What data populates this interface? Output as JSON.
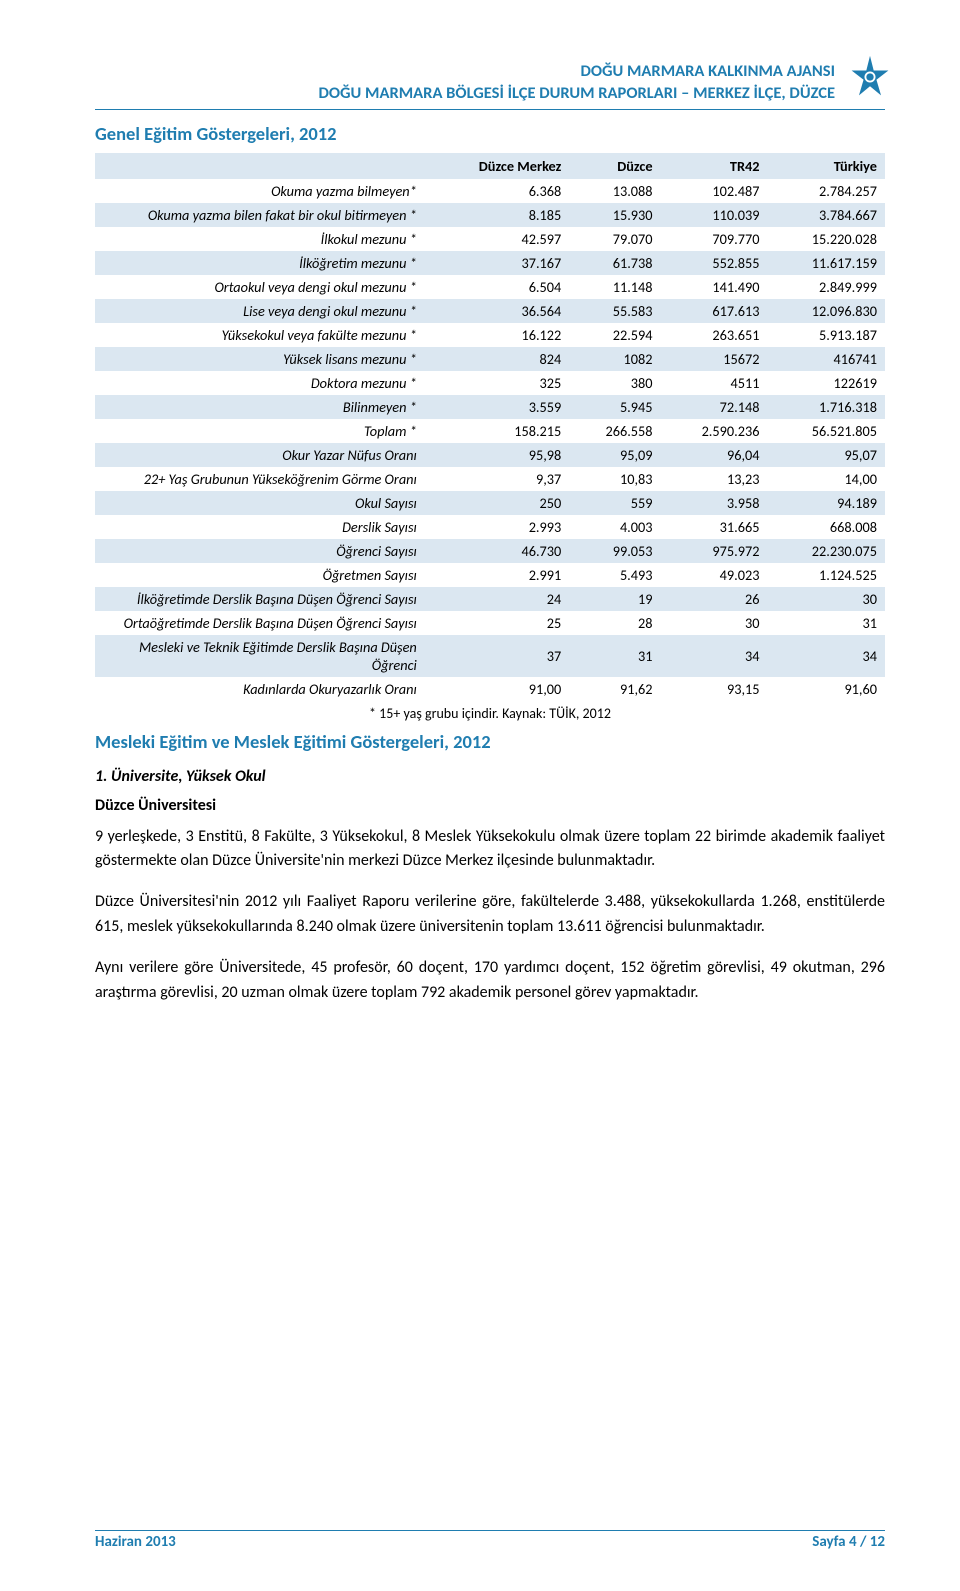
{
  "header": {
    "line1": "DOĞU MARMARA KALKINMA AJANSI",
    "line2": "DOĞU MARMARA BÖLGESİ İLÇE DURUM RAPORLARI – MERKEZ İLÇE, DÜZCE"
  },
  "colors": {
    "accent": "#1f7db0",
    "row_alt": "#dbe7f1",
    "text": "#000000",
    "background": "#ffffff"
  },
  "table1": {
    "title": "Genel Eğitim Göstergeleri, 2012",
    "columns": [
      "",
      "Düzce Merkez",
      "Düzce",
      "TR42",
      "Türkiye"
    ],
    "note": "* 15+ yaş grubu içindir. Kaynak: TÜİK, 2012",
    "rows": [
      {
        "label": "Okuma yazma bilmeyen*",
        "vals": [
          "6.368",
          "13.088",
          "102.487",
          "2.784.257"
        ]
      },
      {
        "label": "Okuma yazma bilen fakat bir okul bitirmeyen *",
        "vals": [
          "8.185",
          "15.930",
          "110.039",
          "3.784.667"
        ]
      },
      {
        "label": "İlkokul mezunu *",
        "vals": [
          "42.597",
          "79.070",
          "709.770",
          "15.220.028"
        ]
      },
      {
        "label": "İlköğretim mezunu *",
        "vals": [
          "37.167",
          "61.738",
          "552.855",
          "11.617.159"
        ]
      },
      {
        "label": "Ortaokul veya dengi okul mezunu *",
        "vals": [
          "6.504",
          "11.148",
          "141.490",
          "2.849.999"
        ]
      },
      {
        "label": "Lise veya dengi okul mezunu *",
        "vals": [
          "36.564",
          "55.583",
          "617.613",
          "12.096.830"
        ]
      },
      {
        "label": "Yüksekokul veya fakülte mezunu *",
        "vals": [
          "16.122",
          "22.594",
          "263.651",
          "5.913.187"
        ]
      },
      {
        "label": "Yüksek lisans mezunu *",
        "vals": [
          "824",
          "1082",
          "15672",
          "416741"
        ]
      },
      {
        "label": "Doktora mezunu *",
        "vals": [
          "325",
          "380",
          "4511",
          "122619"
        ]
      },
      {
        "label": "Bilinmeyen *",
        "vals": [
          "3.559",
          "5.945",
          "72.148",
          "1.716.318"
        ]
      },
      {
        "label": "Toplam *",
        "vals": [
          "158.215",
          "266.558",
          "2.590.236",
          "56.521.805"
        ]
      },
      {
        "label": "Okur Yazar Nüfus Oranı",
        "vals": [
          "95,98",
          "95,09",
          "96,04",
          "95,07"
        ]
      },
      {
        "label": "22+ Yaş Grubunun Yükseköğrenim Görme Oranı",
        "vals": [
          "9,37",
          "10,83",
          "13,23",
          "14,00"
        ]
      },
      {
        "label": "Okul Sayısı",
        "vals": [
          "250",
          "559",
          "3.958",
          "94.189"
        ]
      },
      {
        "label": "Derslik Sayısı",
        "vals": [
          "2.993",
          "4.003",
          "31.665",
          "668.008"
        ]
      },
      {
        "label": "Öğrenci Sayısı",
        "vals": [
          "46.730",
          "99.053",
          "975.972",
          "22.230.075"
        ]
      },
      {
        "label": "Öğretmen Sayısı",
        "vals": [
          "2.991",
          "5.493",
          "49.023",
          "1.124.525"
        ]
      },
      {
        "label": "İlköğretimde Derslik Başına Düşen Öğrenci Sayısı",
        "vals": [
          "24",
          "19",
          "26",
          "30"
        ]
      },
      {
        "label": "Ortaöğretimde Derslik Başına Düşen Öğrenci Sayısı",
        "vals": [
          "25",
          "28",
          "30",
          "31"
        ]
      },
      {
        "label": "Mesleki ve Teknik Eğitimde Derslik Başına Düşen Öğrenci",
        "vals": [
          "37",
          "31",
          "34",
          "34"
        ]
      },
      {
        "label": "Kadınlarda Okuryazarlık Oranı",
        "vals": [
          "91,00",
          "91,62",
          "93,15",
          "91,60"
        ]
      }
    ]
  },
  "section2_title": "Mesleki Eğitim ve Meslek Eğitimi Göstergeleri, 2012",
  "subsection_title": "1. Üniversite, Yüksek Okul",
  "body_heading": "Düzce Üniversitesi",
  "paragraphs": [
    "9 yerleşkede, 3 Enstitü, 8 Fakülte, 3 Yüksekokul, 8 Meslek Yüksekokulu olmak üzere toplam 22 birimde akademik faaliyet göstermekte olan Düzce Üniversite'nin merkezi Düzce Merkez ilçesinde bulunmaktadır.",
    "Düzce Üniversitesi'nin 2012 yılı Faaliyet Raporu verilerine göre, fakültelerde 3.488, yüksekokullarda 1.268, enstitülerde 615, meslek yüksekokullarında 8.240 olmak üzere üniversitenin toplam 13.611 öğrencisi bulunmaktadır.",
    "Aynı verilere göre Üniversitede, 45 profesör, 60 doçent, 170 yardımcı doçent, 152 öğretim görevlisi, 49 okutman, 296 araştırma görevlisi, 20 uzman olmak üzere toplam 792 akademik personel görev yapmaktadır."
  ],
  "footer": {
    "left": "Haziran 2013",
    "right": "Sayfa 4 / 12"
  }
}
